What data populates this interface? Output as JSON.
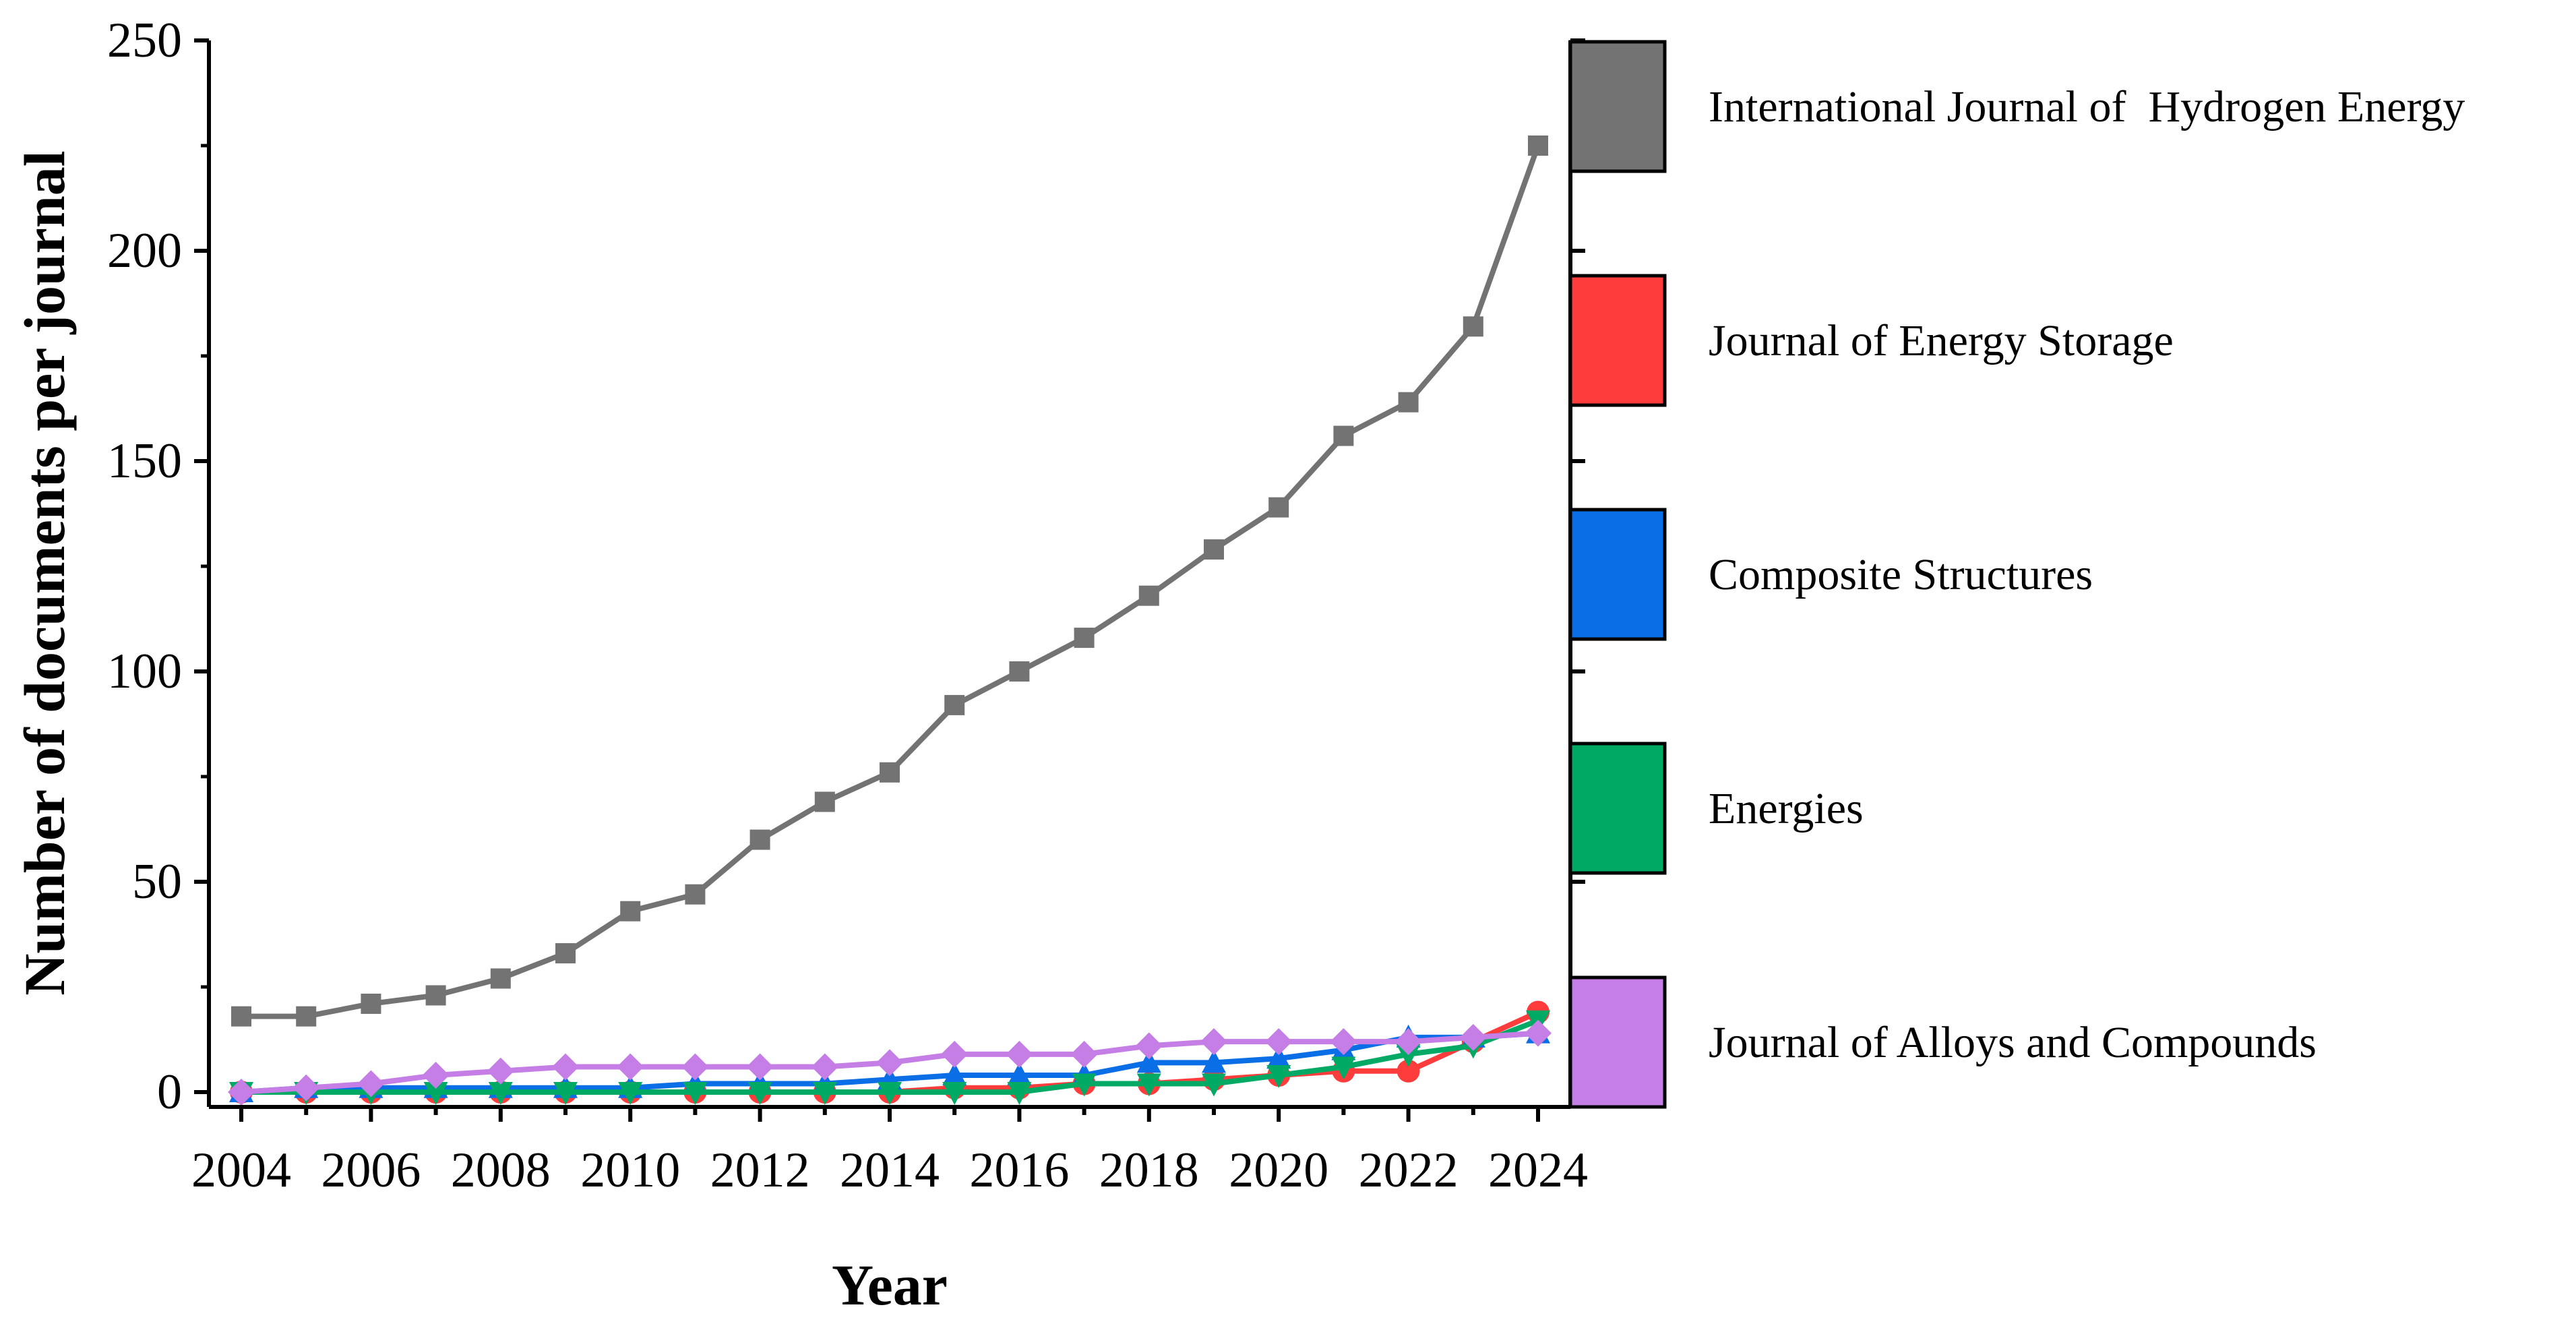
{
  "chart_data": {
    "type": "line",
    "title": "",
    "xlabel": "Year",
    "ylabel": "Number of documents per journal",
    "xlim": [
      2003.5,
      2024.5
    ],
    "ylim": [
      -3,
      250
    ],
    "x_ticks": [
      "2004",
      "2006",
      "2008",
      "2010",
      "2012",
      "2014",
      "2016",
      "2018",
      "2020",
      "2022",
      "2024"
    ],
    "y_ticks": [
      "0",
      "50",
      "100",
      "150",
      "200",
      "250"
    ],
    "x": [
      2004,
      2005,
      2006,
      2007,
      2008,
      2009,
      2010,
      2011,
      2012,
      2013,
      2014,
      2015,
      2016,
      2017,
      2018,
      2019,
      2020,
      2021,
      2022,
      2023,
      2024
    ],
    "legend_position": "right",
    "series": [
      {
        "name": "International Journal of  Hydrogen Energy",
        "color": "#737373",
        "marker": "square",
        "values": [
          18,
          18,
          21,
          23,
          27,
          33,
          43,
          47,
          60,
          69,
          76,
          92,
          100,
          108,
          118,
          129,
          139,
          156,
          164,
          182,
          225
        ]
      },
      {
        "name": "Journal of Energy Storage",
        "color": "#ff3c3c",
        "marker": "circle",
        "values": [
          0,
          0,
          0,
          0,
          0,
          0,
          0,
          0,
          0,
          0,
          0,
          1,
          1,
          2,
          2,
          3,
          4,
          5,
          5,
          12,
          19
        ]
      },
      {
        "name": "Composite Structures",
        "color": "#0a6ee6",
        "marker": "triangle-up",
        "values": [
          0,
          1,
          1,
          1,
          1,
          1,
          1,
          2,
          2,
          2,
          3,
          4,
          4,
          4,
          7,
          7,
          8,
          10,
          13,
          13,
          14
        ]
      },
      {
        "name": "Energies",
        "color": "#00aa64",
        "marker": "triangle-down",
        "values": [
          0,
          0,
          0,
          0,
          0,
          0,
          0,
          0,
          0,
          0,
          0,
          0,
          0,
          2,
          2,
          2,
          4,
          6,
          9,
          11,
          17
        ]
      },
      {
        "name": "Journal of Alloys and Compounds",
        "color": "#c47ee6",
        "marker": "diamond",
        "values": [
          0,
          1,
          2,
          4,
          5,
          6,
          6,
          6,
          6,
          6,
          7,
          9,
          9,
          9,
          11,
          12,
          12,
          12,
          12,
          13,
          14
        ]
      }
    ]
  }
}
